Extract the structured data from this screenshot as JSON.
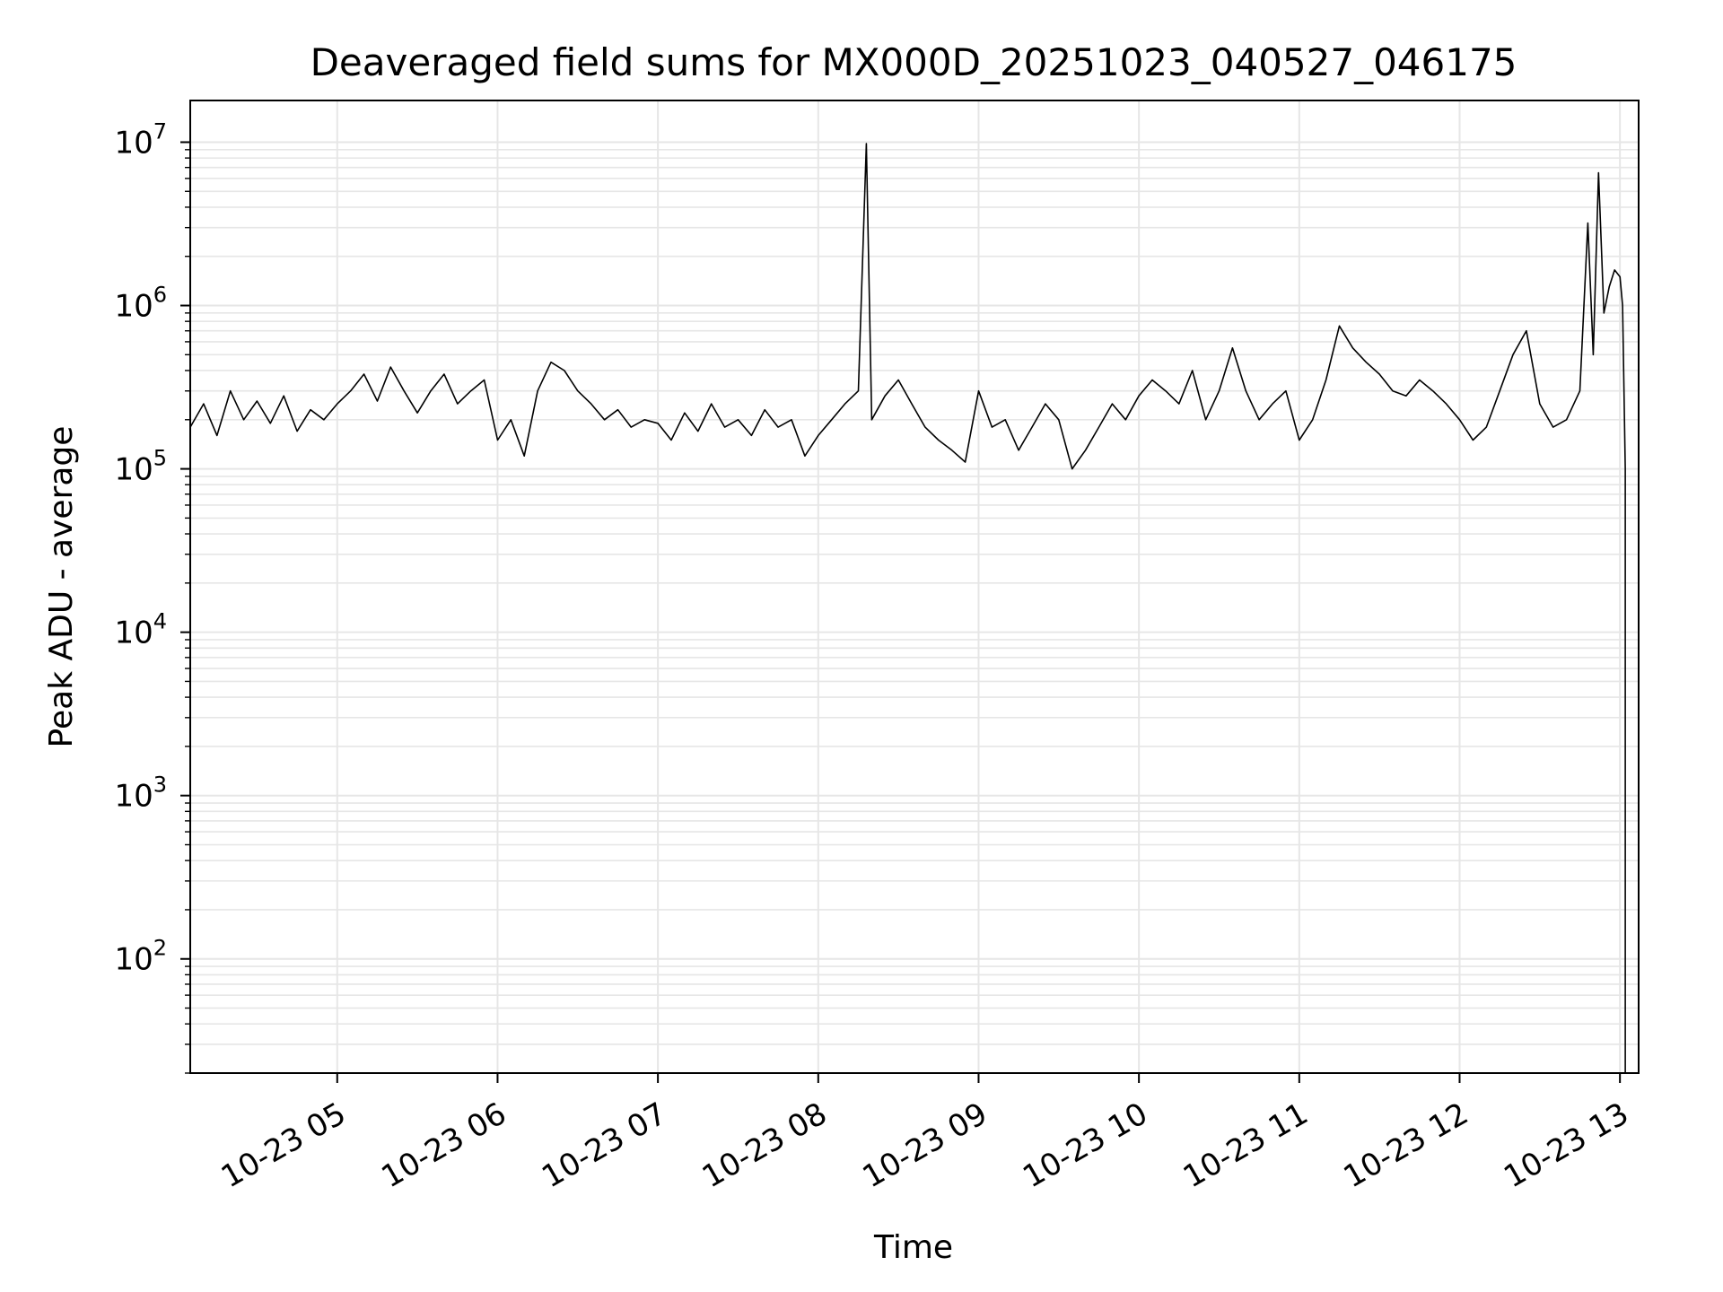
{
  "chart_data": {
    "type": "line",
    "title": "Deaveraged field sums for MX000D_20251023_040527_046175",
    "xlabel": "Time",
    "ylabel": "Peak ADU - average",
    "y_scale": "log",
    "ylim": [
      20,
      18000000
    ],
    "xlim": [
      "2025-10-23T04:05",
      "2025-10-23T13:07"
    ],
    "grid": "major and minor, light gray",
    "line_color": "#000000",
    "grid_color": "#e6e6e6",
    "x_ticks": [
      {
        "t": "2025-10-23T05:00",
        "label": "10-23 05"
      },
      {
        "t": "2025-10-23T06:00",
        "label": "10-23 06"
      },
      {
        "t": "2025-10-23T07:00",
        "label": "10-23 07"
      },
      {
        "t": "2025-10-23T08:00",
        "label": "10-23 08"
      },
      {
        "t": "2025-10-23T09:00",
        "label": "10-23 09"
      },
      {
        "t": "2025-10-23T10:00",
        "label": "10-23 10"
      },
      {
        "t": "2025-10-23T11:00",
        "label": "10-23 11"
      },
      {
        "t": "2025-10-23T12:00",
        "label": "10-23 12"
      },
      {
        "t": "2025-10-23T13:00",
        "label": "10-23 13"
      }
    ],
    "y_ticks": [
      {
        "value": 100,
        "base": "10",
        "exp": "2"
      },
      {
        "value": 1000,
        "base": "10",
        "exp": "3"
      },
      {
        "value": 10000,
        "base": "10",
        "exp": "4"
      },
      {
        "value": 100000,
        "base": "10",
        "exp": "5"
      },
      {
        "value": 1000000,
        "base": "10",
        "exp": "6"
      },
      {
        "value": 10000000,
        "base": "10",
        "exp": "7"
      }
    ],
    "series": [
      {
        "points": [
          [
            "2025-10-23T04:05",
            180000
          ],
          [
            "2025-10-23T04:10",
            250000
          ],
          [
            "2025-10-23T04:15",
            160000
          ],
          [
            "2025-10-23T04:20",
            300000
          ],
          [
            "2025-10-23T04:25",
            200000
          ],
          [
            "2025-10-23T04:30",
            260000
          ],
          [
            "2025-10-23T04:35",
            190000
          ],
          [
            "2025-10-23T04:40",
            280000
          ],
          [
            "2025-10-23T04:45",
            170000
          ],
          [
            "2025-10-23T04:50",
            230000
          ],
          [
            "2025-10-23T04:55",
            200000
          ],
          [
            "2025-10-23T05:00",
            250000
          ],
          [
            "2025-10-23T05:05",
            300000
          ],
          [
            "2025-10-23T05:10",
            380000
          ],
          [
            "2025-10-23T05:15",
            260000
          ],
          [
            "2025-10-23T05:20",
            420000
          ],
          [
            "2025-10-23T05:25",
            300000
          ],
          [
            "2025-10-23T05:30",
            220000
          ],
          [
            "2025-10-23T05:35",
            300000
          ],
          [
            "2025-10-23T05:40",
            380000
          ],
          [
            "2025-10-23T05:45",
            250000
          ],
          [
            "2025-10-23T05:50",
            300000
          ],
          [
            "2025-10-23T05:55",
            350000
          ],
          [
            "2025-10-23T06:00",
            150000
          ],
          [
            "2025-10-23T06:05",
            200000
          ],
          [
            "2025-10-23T06:10",
            120000
          ],
          [
            "2025-10-23T06:15",
            300000
          ],
          [
            "2025-10-23T06:20",
            450000
          ],
          [
            "2025-10-23T06:25",
            400000
          ],
          [
            "2025-10-23T06:30",
            300000
          ],
          [
            "2025-10-23T06:35",
            250000
          ],
          [
            "2025-10-23T06:40",
            200000
          ],
          [
            "2025-10-23T06:45",
            230000
          ],
          [
            "2025-10-23T06:50",
            180000
          ],
          [
            "2025-10-23T06:55",
            200000
          ],
          [
            "2025-10-23T07:00",
            190000
          ],
          [
            "2025-10-23T07:05",
            150000
          ],
          [
            "2025-10-23T07:10",
            220000
          ],
          [
            "2025-10-23T07:15",
            170000
          ],
          [
            "2025-10-23T07:20",
            250000
          ],
          [
            "2025-10-23T07:25",
            180000
          ],
          [
            "2025-10-23T07:30",
            200000
          ],
          [
            "2025-10-23T07:35",
            160000
          ],
          [
            "2025-10-23T07:40",
            230000
          ],
          [
            "2025-10-23T07:45",
            180000
          ],
          [
            "2025-10-23T07:50",
            200000
          ],
          [
            "2025-10-23T07:55",
            120000
          ],
          [
            "2025-10-23T08:00",
            160000
          ],
          [
            "2025-10-23T08:05",
            200000
          ],
          [
            "2025-10-23T08:10",
            250000
          ],
          [
            "2025-10-23T08:15",
            300000
          ],
          [
            "2025-10-23T08:18",
            9800000
          ],
          [
            "2025-10-23T08:20",
            200000
          ],
          [
            "2025-10-23T08:25",
            280000
          ],
          [
            "2025-10-23T08:30",
            350000
          ],
          [
            "2025-10-23T08:35",
            250000
          ],
          [
            "2025-10-23T08:40",
            180000
          ],
          [
            "2025-10-23T08:45",
            150000
          ],
          [
            "2025-10-23T08:50",
            130000
          ],
          [
            "2025-10-23T08:55",
            110000
          ],
          [
            "2025-10-23T09:00",
            300000
          ],
          [
            "2025-10-23T09:05",
            180000
          ],
          [
            "2025-10-23T09:10",
            200000
          ],
          [
            "2025-10-23T09:15",
            130000
          ],
          [
            "2025-10-23T09:20",
            180000
          ],
          [
            "2025-10-23T09:25",
            250000
          ],
          [
            "2025-10-23T09:30",
            200000
          ],
          [
            "2025-10-23T09:35",
            100000
          ],
          [
            "2025-10-23T09:40",
            130000
          ],
          [
            "2025-10-23T09:45",
            180000
          ],
          [
            "2025-10-23T09:50",
            250000
          ],
          [
            "2025-10-23T09:55",
            200000
          ],
          [
            "2025-10-23T10:00",
            280000
          ],
          [
            "2025-10-23T10:05",
            350000
          ],
          [
            "2025-10-23T10:10",
            300000
          ],
          [
            "2025-10-23T10:15",
            250000
          ],
          [
            "2025-10-23T10:20",
            400000
          ],
          [
            "2025-10-23T10:25",
            200000
          ],
          [
            "2025-10-23T10:30",
            300000
          ],
          [
            "2025-10-23T10:35",
            550000
          ],
          [
            "2025-10-23T10:40",
            300000
          ],
          [
            "2025-10-23T10:45",
            200000
          ],
          [
            "2025-10-23T10:50",
            250000
          ],
          [
            "2025-10-23T10:55",
            300000
          ],
          [
            "2025-10-23T11:00",
            150000
          ],
          [
            "2025-10-23T11:05",
            200000
          ],
          [
            "2025-10-23T11:10",
            350000
          ],
          [
            "2025-10-23T11:15",
            750000
          ],
          [
            "2025-10-23T11:20",
            550000
          ],
          [
            "2025-10-23T11:25",
            450000
          ],
          [
            "2025-10-23T11:30",
            380000
          ],
          [
            "2025-10-23T11:35",
            300000
          ],
          [
            "2025-10-23T11:40",
            280000
          ],
          [
            "2025-10-23T11:45",
            350000
          ],
          [
            "2025-10-23T11:50",
            300000
          ],
          [
            "2025-10-23T11:55",
            250000
          ],
          [
            "2025-10-23T12:00",
            200000
          ],
          [
            "2025-10-23T12:05",
            150000
          ],
          [
            "2025-10-23T12:10",
            180000
          ],
          [
            "2025-10-23T12:15",
            300000
          ],
          [
            "2025-10-23T12:20",
            500000
          ],
          [
            "2025-10-23T12:25",
            700000
          ],
          [
            "2025-10-23T12:30",
            250000
          ],
          [
            "2025-10-23T12:35",
            180000
          ],
          [
            "2025-10-23T12:40",
            200000
          ],
          [
            "2025-10-23T12:45",
            300000
          ],
          [
            "2025-10-23T12:48",
            3200000
          ],
          [
            "2025-10-23T12:50",
            500000
          ],
          [
            "2025-10-23T12:52",
            6500000
          ],
          [
            "2025-10-23T12:54",
            900000
          ],
          [
            "2025-10-23T12:56",
            1300000
          ],
          [
            "2025-10-23T12:58",
            1650000
          ],
          [
            "2025-10-23T13:00",
            1500000
          ],
          [
            "2025-10-23T13:01",
            1000000
          ],
          [
            "2025-10-23T13:02",
            100000
          ],
          [
            "2025-10-23T13:02",
            20
          ]
        ]
      }
    ]
  }
}
